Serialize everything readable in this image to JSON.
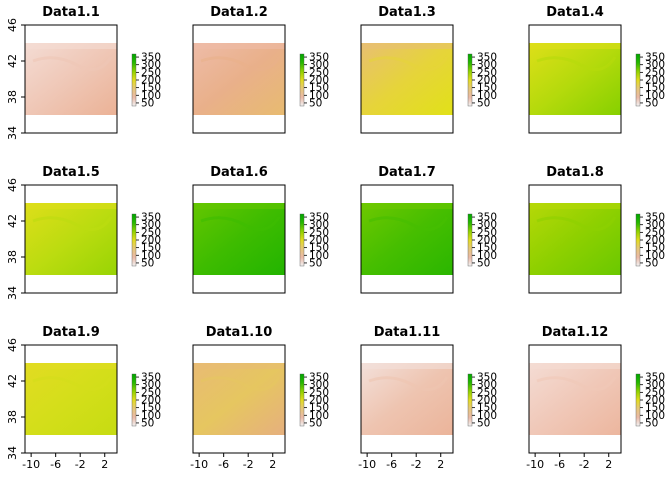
{
  "chart_data": {
    "type": "heatmap",
    "layout": "3 rows x 4 columns",
    "colormap": "terrain (reversed): low = light pink, high = green",
    "xlim": [
      -11,
      4
    ],
    "ylim": [
      34,
      46
    ],
    "data_extent_y": [
      36,
      44
    ],
    "x_ticks": [
      -10,
      -6,
      -2,
      2
    ],
    "x_tick_labels": [
      "-10",
      "-6",
      "-2",
      "2"
    ],
    "y_ticks": [
      34,
      38,
      42,
      46
    ],
    "y_tick_labels": [
      "34",
      "38",
      "42",
      "46"
    ],
    "legend": {
      "range": [
        30,
        370
      ],
      "breaks": [
        50,
        100,
        150,
        200,
        250,
        300,
        350
      ],
      "labels": [
        "50",
        "100",
        "150",
        "200",
        "250",
        "300",
        "350"
      ],
      "colors": [
        "#f2f2f2",
        "#eab9a6",
        "#e6c77a",
        "#e2dc1e",
        "#8fd200",
        "#26b800",
        "#00a600"
      ]
    },
    "panels": [
      {
        "title": "Data1.1",
        "mean_value": 70,
        "colors": [
          "#f4dcd4",
          "#efc7b6",
          "#ebb296"
        ]
      },
      {
        "title": "Data1.2",
        "mean_value": 110,
        "colors": [
          "#eebca8",
          "#e9b08a",
          "#e8bb70"
        ]
      },
      {
        "title": "Data1.3",
        "mean_value": 175,
        "colors": [
          "#e8bf72",
          "#e6d43a",
          "#e1e118"
        ]
      },
      {
        "title": "Data1.4",
        "mean_value": 235,
        "colors": [
          "#dedf19",
          "#b5da0c",
          "#86d000"
        ]
      },
      {
        "title": "Data1.5",
        "mean_value": 225,
        "colors": [
          "#dede1a",
          "#bcdc10",
          "#98d404"
        ]
      },
      {
        "title": "Data1.6",
        "mean_value": 320,
        "colors": [
          "#64c600",
          "#3ebc00",
          "#22b400"
        ]
      },
      {
        "title": "Data1.7",
        "mean_value": 315,
        "colors": [
          "#6ec800",
          "#46be00",
          "#2ab600"
        ]
      },
      {
        "title": "Data1.8",
        "mean_value": 280,
        "colors": [
          "#b6d808",
          "#8ed000",
          "#6ac800"
        ]
      },
      {
        "title": "Data1.9",
        "mean_value": 190,
        "colors": [
          "#e2dc22",
          "#d4de1a",
          "#c6dc12"
        ]
      },
      {
        "title": "Data1.10",
        "mean_value": 135,
        "colors": [
          "#e8bb74",
          "#e6c660",
          "#e6b07e"
        ]
      },
      {
        "title": "Data1.11",
        "mean_value": 85,
        "colors": [
          "#f3e0da",
          "#eec4b0",
          "#ebb49a"
        ]
      },
      {
        "title": "Data1.12",
        "mean_value": 75,
        "colors": [
          "#f4dcd4",
          "#f0c8b8",
          "#ecb69e"
        ]
      }
    ]
  }
}
